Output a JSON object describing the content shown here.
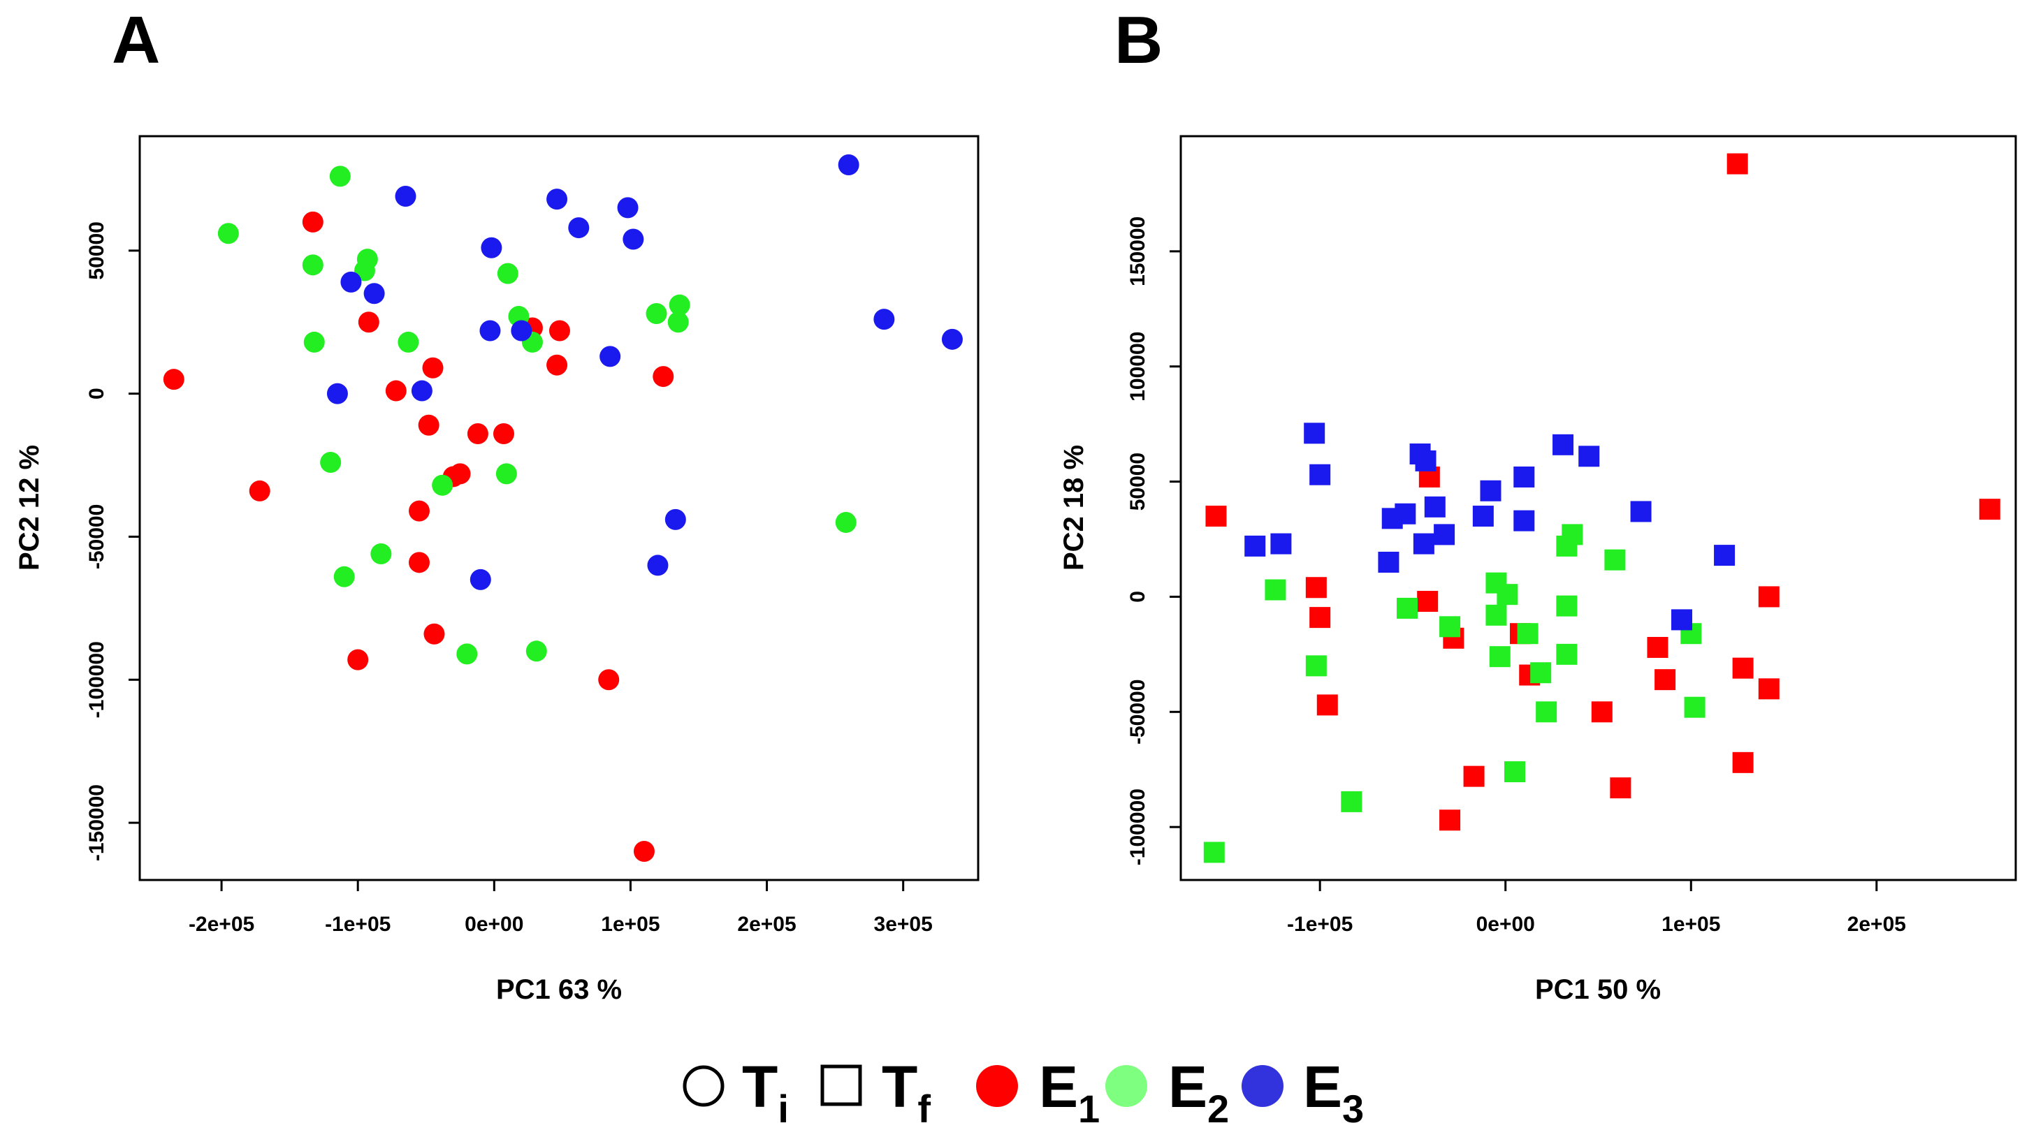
{
  "figure": {
    "panels": [
      "A",
      "B"
    ],
    "legend": [
      {
        "symbol": "open-circle",
        "label": "T",
        "sub": "i",
        "color": "#000000"
      },
      {
        "symbol": "open-square",
        "label": "T",
        "sub": "f",
        "color": "#000000"
      },
      {
        "symbol": "filled-circle",
        "label": "E",
        "sub": "1",
        "color": "#ff0000"
      },
      {
        "symbol": "filled-circle",
        "label": "E",
        "sub": "2",
        "color": "#7fff7f"
      },
      {
        "symbol": "filled-circle",
        "label": "E",
        "sub": "3",
        "color": "#3333dd"
      }
    ]
  },
  "chart_data": [
    {
      "type": "scatter",
      "panel": "A",
      "marker": "circle",
      "xlabel": "PC1 63 %",
      "ylabel": "PC2 12 %",
      "xlim": [
        -260000,
        355000
      ],
      "ylim": [
        -170000,
        90000
      ],
      "xticks": [
        -200000,
        -100000,
        0,
        100000,
        200000,
        300000
      ],
      "xtick_labels": [
        "-2e+05",
        "-1e+05",
        "0e+00",
        "1e+05",
        "2e+05",
        "3e+05"
      ],
      "yticks": [
        -150000,
        -100000,
        -50000,
        0,
        50000
      ],
      "ytick_labels": [
        "-150000",
        "-100000",
        "-50000",
        "0",
        "50000"
      ],
      "grid": false,
      "series": [
        {
          "name": "E1",
          "color": "#ff0000",
          "points": [
            [
              -235000,
              5000
            ],
            [
              -133000,
              60000
            ],
            [
              -92000,
              25000
            ],
            [
              -72000,
              1000
            ],
            [
              -45000,
              9000
            ],
            [
              -48000,
              -11000
            ],
            [
              -55000,
              -41000
            ],
            [
              -55000,
              -59000
            ],
            [
              -44000,
              -84000
            ],
            [
              -100000,
              -93000
            ],
            [
              -172000,
              -34000
            ],
            [
              -12000,
              -14000
            ],
            [
              -25000,
              -28000
            ],
            [
              -30000,
              -29000
            ],
            [
              7000,
              -14000
            ],
            [
              28000,
              23000
            ],
            [
              48000,
              22000
            ],
            [
              46000,
              10000
            ],
            [
              124000,
              6000
            ],
            [
              84000,
              -100000
            ],
            [
              110000,
              -160000
            ]
          ]
        },
        {
          "name": "E2",
          "color": "#22ee22",
          "points": [
            [
              -195000,
              56000
            ],
            [
              -113000,
              76000
            ],
            [
              -133000,
              45000
            ],
            [
              -93000,
              47000
            ],
            [
              -95000,
              43000
            ],
            [
              -132000,
              18000
            ],
            [
              -63000,
              18000
            ],
            [
              -120000,
              -24000
            ],
            [
              -110000,
              -64000
            ],
            [
              -83000,
              -56000
            ],
            [
              -38000,
              -32000
            ],
            [
              -20000,
              -91000
            ],
            [
              31000,
              -90000
            ],
            [
              9000,
              -28000
            ],
            [
              10000,
              42000
            ],
            [
              18000,
              27000
            ],
            [
              28000,
              18000
            ],
            [
              119000,
              28000
            ],
            [
              136000,
              31000
            ],
            [
              135000,
              25000
            ],
            [
              258000,
              -45000
            ]
          ]
        },
        {
          "name": "E3",
          "color": "#1a1aee",
          "points": [
            [
              -65000,
              69000
            ],
            [
              -105000,
              39000
            ],
            [
              -88000,
              35000
            ],
            [
              -115000,
              0
            ],
            [
              -53000,
              1000
            ],
            [
              -2000,
              51000
            ],
            [
              -3000,
              22000
            ],
            [
              20000,
              22000
            ],
            [
              46000,
              68000
            ],
            [
              62000,
              58000
            ],
            [
              98000,
              65000
            ],
            [
              102000,
              54000
            ],
            [
              85000,
              13000
            ],
            [
              133000,
              -44000
            ],
            [
              120000,
              -60000
            ],
            [
              -10000,
              -65000
            ],
            [
              260000,
              80000
            ],
            [
              286000,
              26000
            ],
            [
              336000,
              19000
            ]
          ]
        }
      ]
    },
    {
      "type": "scatter",
      "panel": "B",
      "marker": "square",
      "xlabel": "PC1 50 %",
      "ylabel": "PC2 18 %",
      "xlim": [
        -175000,
        275000
      ],
      "ylim": [
        -123000,
        200000
      ],
      "xticks": [
        -100000,
        0,
        100000,
        200000
      ],
      "xtick_labels": [
        "-1e+05",
        "0e+00",
        "1e+05",
        "2e+05"
      ],
      "yticks": [
        -100000,
        -50000,
        0,
        50000,
        100000,
        150000
      ],
      "ytick_labels": [
        "-100000",
        "-50000",
        "0",
        "50000",
        "100000",
        "150000"
      ],
      "grid": false,
      "series": [
        {
          "name": "E1",
          "color": "#ff0000",
          "points": [
            [
              -156000,
              35000
            ],
            [
              -102000,
              4000
            ],
            [
              -100000,
              -9000
            ],
            [
              -96000,
              -47000
            ],
            [
              -41000,
              52000
            ],
            [
              -42000,
              -2000
            ],
            [
              -28000,
              -18000
            ],
            [
              -17000,
              -78000
            ],
            [
              -30000,
              -97000
            ],
            [
              8000,
              -16000
            ],
            [
              13000,
              -34000
            ],
            [
              52000,
              -50000
            ],
            [
              62000,
              -83000
            ],
            [
              82000,
              -22000
            ],
            [
              86000,
              -36000
            ],
            [
              125000,
              188000
            ],
            [
              128000,
              -31000
            ],
            [
              128000,
              -72000
            ],
            [
              142000,
              -40000
            ],
            [
              142000,
              0
            ],
            [
              261000,
              38000
            ]
          ]
        },
        {
          "name": "E2",
          "color": "#22ee22",
          "points": [
            [
              -157000,
              -111000
            ],
            [
              -124000,
              3000
            ],
            [
              -102000,
              -30000
            ],
            [
              -83000,
              -89000
            ],
            [
              -53000,
              -5000
            ],
            [
              -30000,
              -13000
            ],
            [
              -5000,
              6000
            ],
            [
              -5000,
              -8000
            ],
            [
              1000,
              1000
            ],
            [
              -3000,
              -26000
            ],
            [
              12000,
              -16000
            ],
            [
              5000,
              -76000
            ],
            [
              19000,
              -33000
            ],
            [
              22000,
              -50000
            ],
            [
              33000,
              22000
            ],
            [
              36000,
              27000
            ],
            [
              33000,
              -4000
            ],
            [
              33000,
              -25000
            ],
            [
              59000,
              16000
            ],
            [
              100000,
              -16000
            ],
            [
              102000,
              -48000
            ]
          ]
        },
        {
          "name": "E3",
          "color": "#1a1aee",
          "points": [
            [
              -135000,
              22000
            ],
            [
              -121000,
              23000
            ],
            [
              -103000,
              71000
            ],
            [
              -100000,
              53000
            ],
            [
              -63000,
              15000
            ],
            [
              -61000,
              34000
            ],
            [
              -54000,
              36000
            ],
            [
              -46000,
              62000
            ],
            [
              -43000,
              59000
            ],
            [
              -44000,
              23000
            ],
            [
              -38000,
              39000
            ],
            [
              -33000,
              27000
            ],
            [
              -12000,
              35000
            ],
            [
              -8000,
              46000
            ],
            [
              10000,
              52000
            ],
            [
              10000,
              33000
            ],
            [
              31000,
              66000
            ],
            [
              45000,
              61000
            ],
            [
              73000,
              37000
            ],
            [
              95000,
              -10000
            ],
            [
              118000,
              18000
            ]
          ]
        }
      ]
    }
  ]
}
